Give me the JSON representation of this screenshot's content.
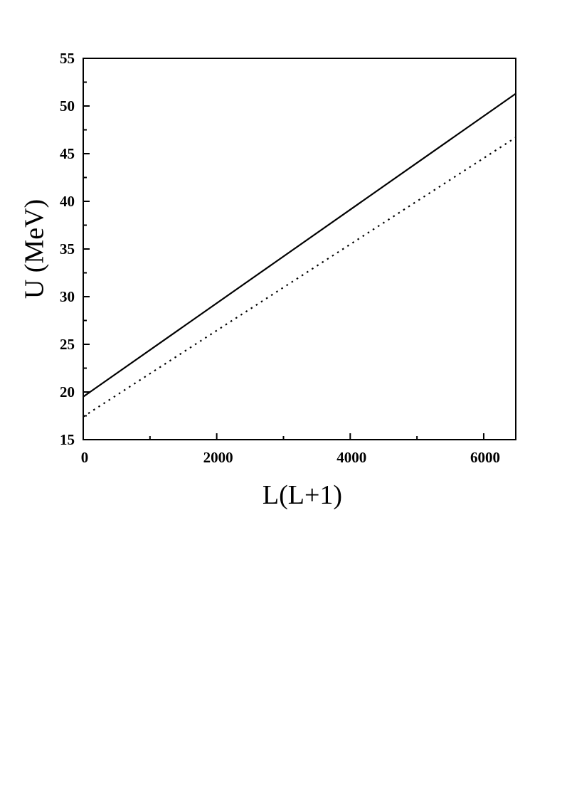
{
  "chart_data": {
    "type": "line",
    "title": "",
    "xlabel": "L(L+1)",
    "ylabel": "U (MeV)",
    "xlim": [
      0,
      6480
    ],
    "ylim": [
      15,
      55
    ],
    "x_ticks": [
      0,
      2000,
      4000,
      6000
    ],
    "x_tick_labels": [
      "0",
      "2000",
      "4000",
      "6000"
    ],
    "x_minor_ticks": [
      1000,
      3000,
      5000
    ],
    "y_ticks": [
      15,
      20,
      25,
      30,
      35,
      40,
      45,
      50,
      55
    ],
    "y_tick_labels": [
      "15",
      "20",
      "25",
      "30",
      "35",
      "40",
      "45",
      "50",
      "55"
    ],
    "grid": false,
    "legend": "none",
    "series": [
      {
        "style": "solid",
        "color": "#000000",
        "x": [
          0,
          6480
        ],
        "y": [
          19.5,
          51.3
        ]
      },
      {
        "style": "dotted",
        "color": "#000000",
        "x": [
          0,
          6480
        ],
        "y": [
          17.4,
          46.7
        ]
      }
    ]
  }
}
